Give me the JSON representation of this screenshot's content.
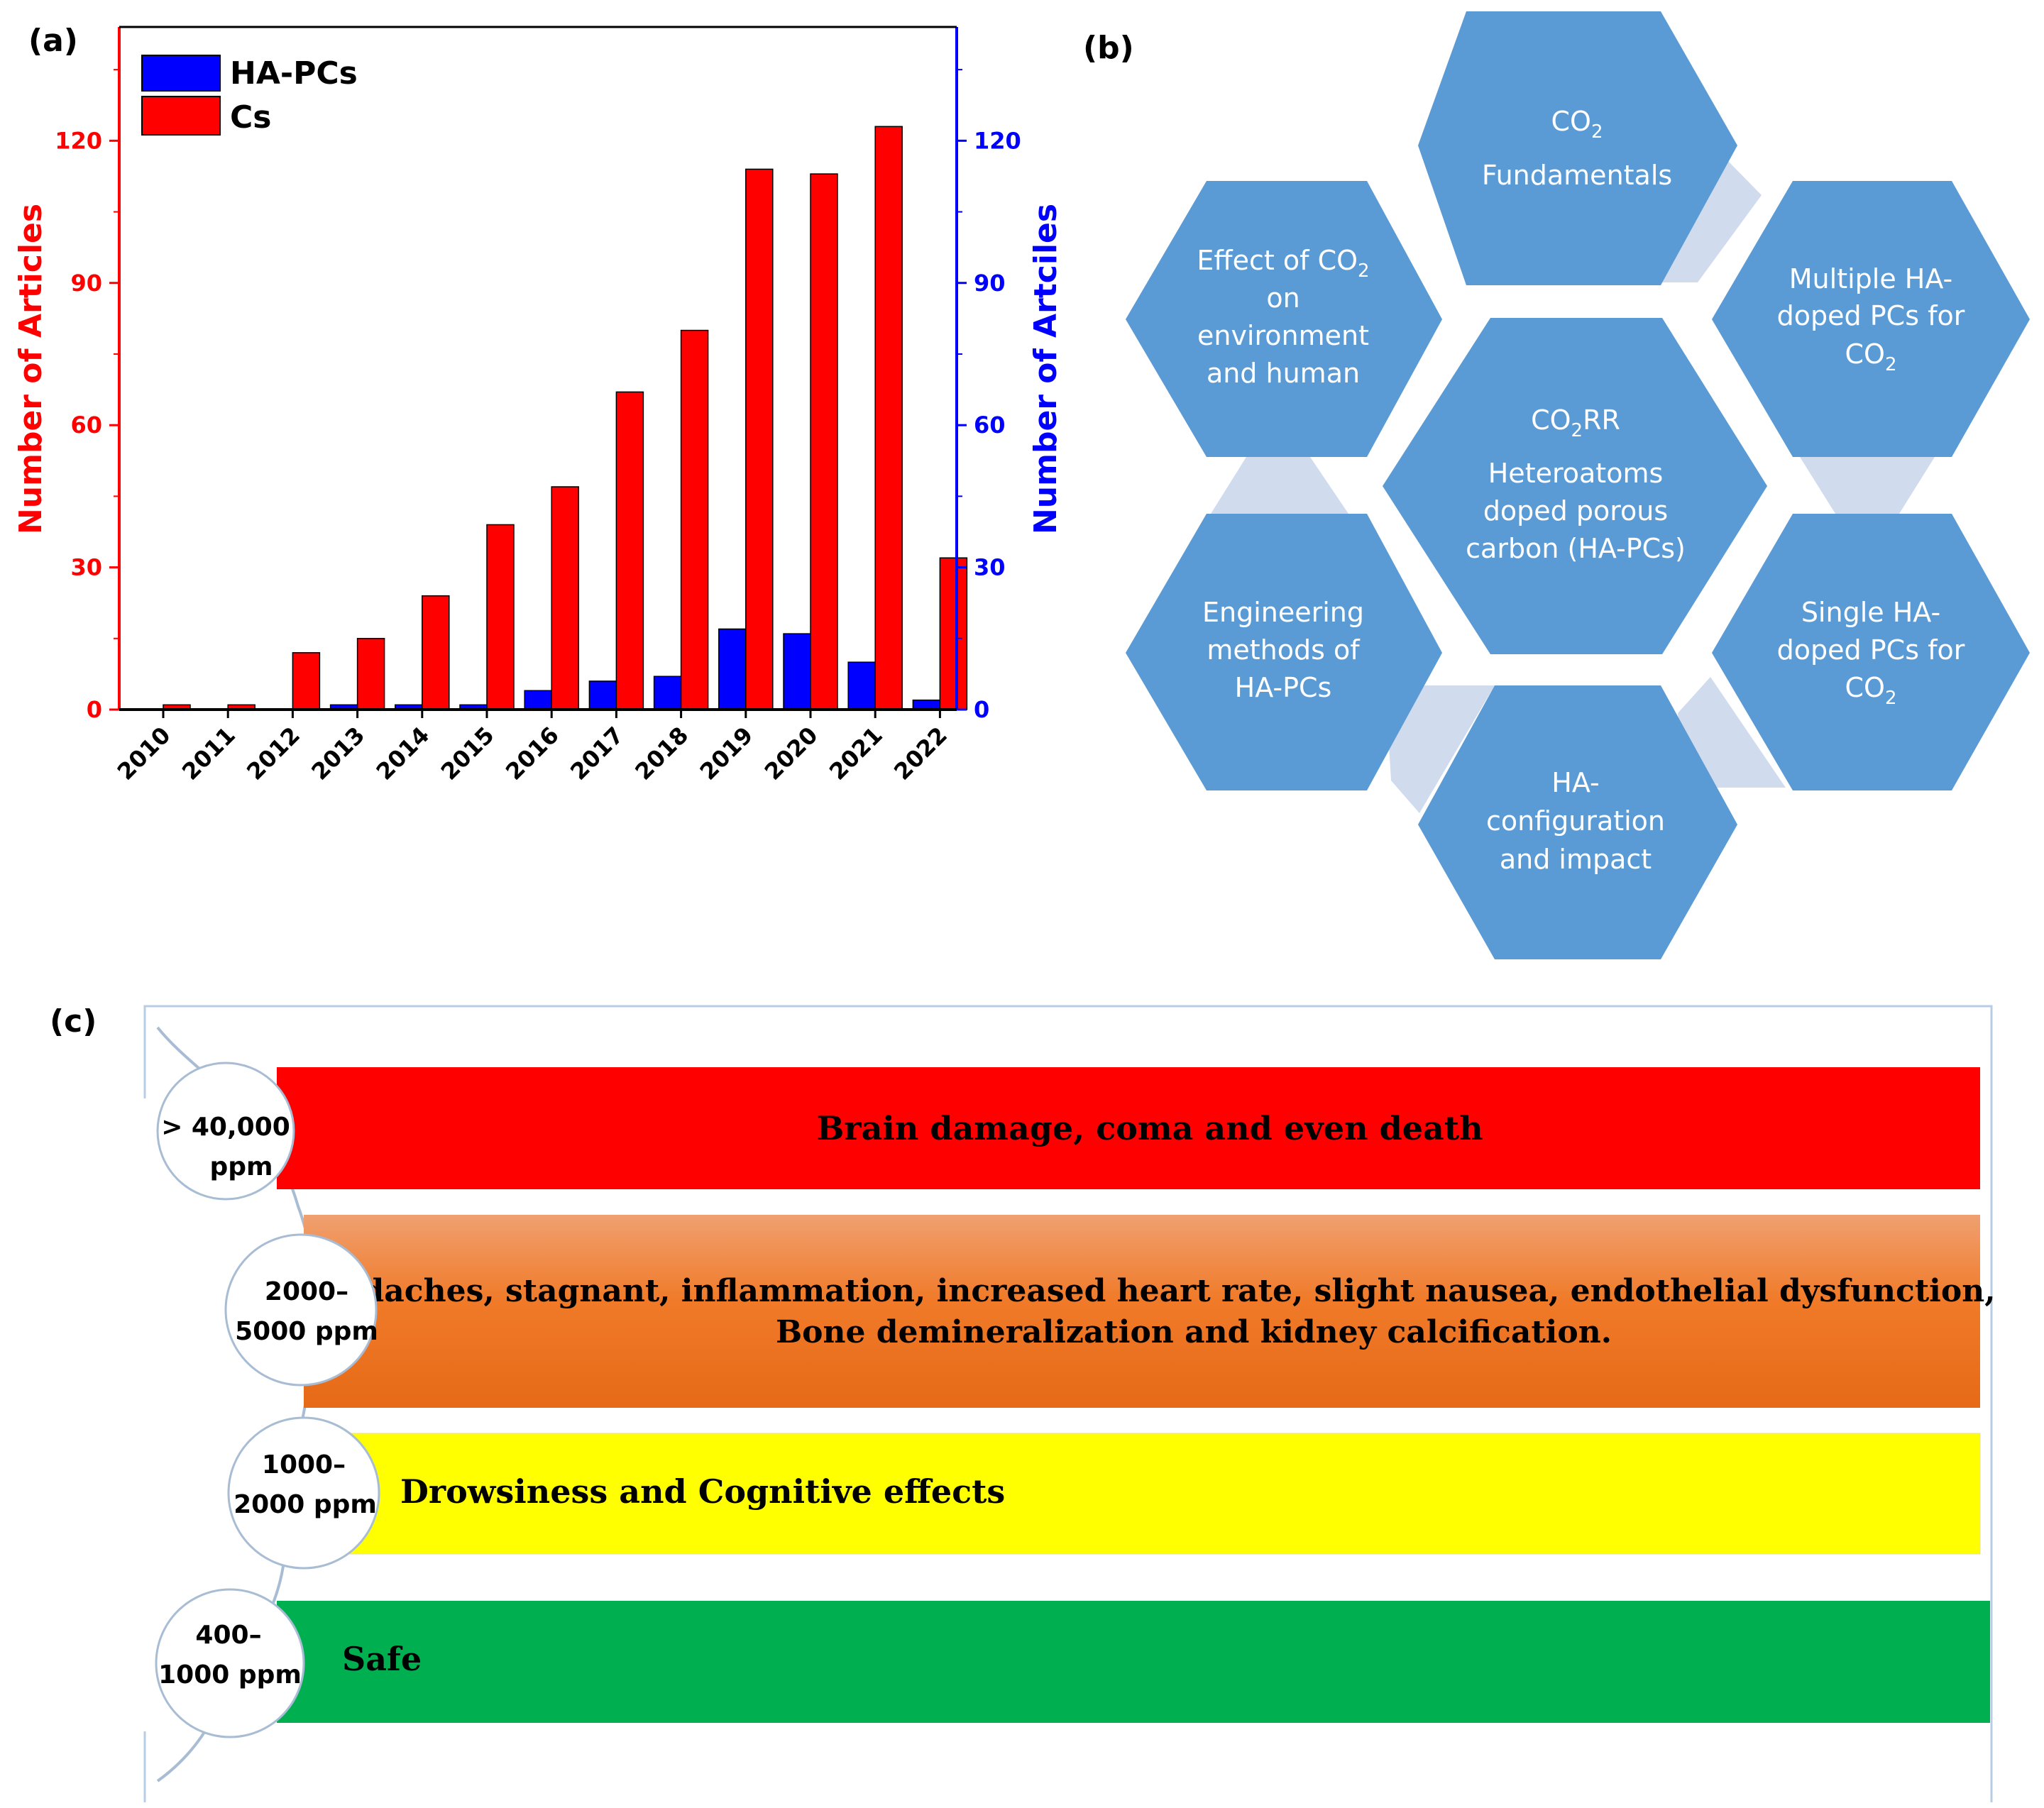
{
  "panel_a": {
    "label": "(a)",
    "chart_data": {
      "type": "bar",
      "categories": [
        "2010",
        "2011",
        "2012",
        "2013",
        "2014",
        "2015",
        "2016",
        "2017",
        "2018",
        "2019",
        "2020",
        "2021",
        "2022"
      ],
      "series": [
        {
          "name": "HA-PCs",
          "color": "#0000ff",
          "values": [
            0,
            0,
            0,
            1,
            1,
            1,
            4,
            6,
            7,
            17,
            16,
            10,
            2
          ]
        },
        {
          "name": "Cs",
          "color": "#ff0000",
          "values": [
            1,
            1,
            12,
            15,
            24,
            39,
            47,
            67,
            80,
            114,
            113,
            123,
            32
          ]
        }
      ],
      "ylabel_left": "Number of Articles",
      "ylabel_right": "Number of Artciles",
      "ylim": [
        0,
        144
      ],
      "yticks": [
        0,
        30,
        60,
        90,
        120
      ],
      "legend_position": "top-left"
    }
  },
  "panel_b": {
    "label": "(b)",
    "hexagons": {
      "center": {
        "line1_main": "CO",
        "line1_sub": "2",
        "line1_tail": "RR",
        "lines": [
          "Heteroatoms",
          "doped porous",
          "carbon (HA-PCs)"
        ]
      },
      "top": {
        "line1_main": "CO",
        "line1_sub": "2",
        "lines": [
          "Fundamentals"
        ]
      },
      "upper_right": {
        "lines": [
          "Multiple HA-",
          "doped PCs for"
        ],
        "last_main": "CO",
        "last_sub": "2"
      },
      "lower_right": {
        "lines": [
          "Single HA-",
          "doped PCs for"
        ],
        "last_main": "CO",
        "last_sub": "2"
      },
      "bottom": {
        "lines": [
          "HA-",
          "configuration",
          "and impact"
        ]
      },
      "lower_left": {
        "lines": [
          "Engineering",
          "methods of",
          "HA-PCs"
        ]
      },
      "upper_left": {
        "line1_main": "Effect of CO",
        "line1_sub": "2",
        "lines": [
          "on",
          "environment",
          "and human"
        ]
      }
    },
    "colors": {
      "hexagon": "#5b9bd5",
      "connector": "#d0dcee"
    }
  },
  "panel_c": {
    "label": "(c)",
    "levels": [
      {
        "range_line1": "> 40,000",
        "range_line2": "ppm",
        "effect_lines": [
          "Brain damage, coma and even death"
        ],
        "color": "#ff0000"
      },
      {
        "range_line1": "2000–",
        "range_line2": "5000 ppm",
        "effect_lines": [
          "Headaches, stagnant, inflammation, increased heart rate, slight nausea, endothelial dysfunction,",
          "Bone demineralization and kidney calcification."
        ],
        "color": "#f07a28"
      },
      {
        "range_line1": "1000–",
        "range_line2": "2000 ppm",
        "effect_lines": [
          "Drowsiness and Cognitive effects"
        ],
        "color": "#ffff00"
      },
      {
        "range_line1": "400–",
        "range_line2": "1000 ppm",
        "effect_lines": [
          "Safe"
        ],
        "color": "#00b050"
      }
    ]
  }
}
